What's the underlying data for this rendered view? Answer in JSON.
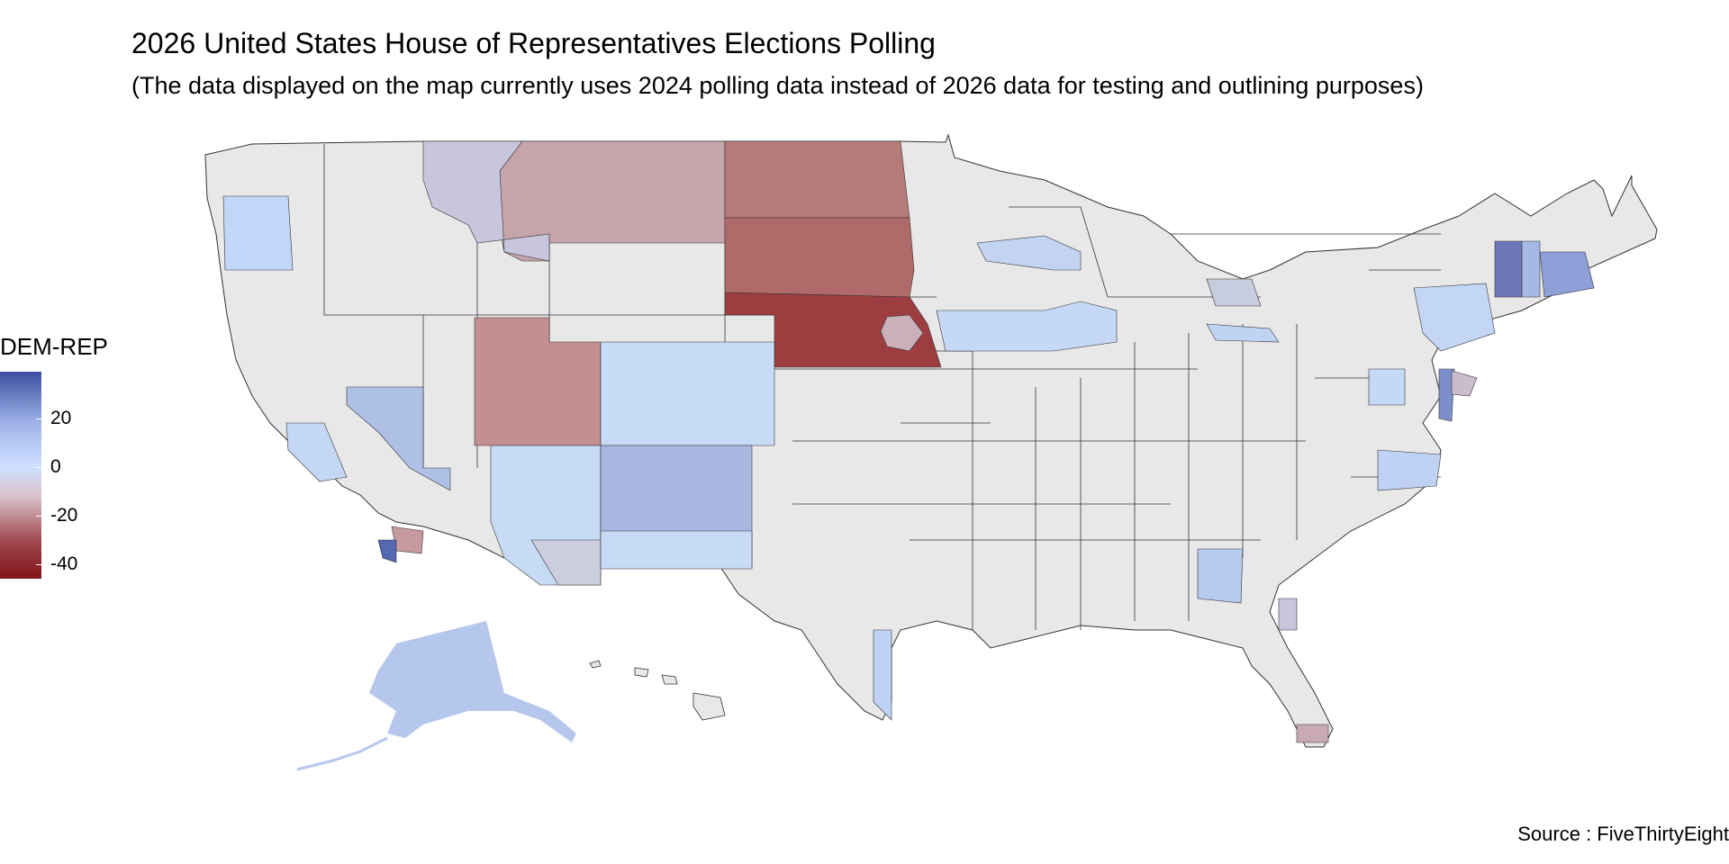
{
  "header": {
    "title": "2026 United States House of Representatives Elections Polling",
    "subtitle": "(The data displayed on the map currently uses 2024 polling data instead of 2026 data for testing and outlining purposes)"
  },
  "legend": {
    "title": "DEM-REP",
    "ticks": [
      "20",
      "0",
      "-20",
      "-40"
    ],
    "colors": {
      "dem_high": "#3b4da0",
      "neutral": "#cfe0ff",
      "rep_high": "#7f1418",
      "no_data": "#e8e8e8"
    }
  },
  "footer": {
    "source": "Source : FiveThirtyEight"
  }
}
